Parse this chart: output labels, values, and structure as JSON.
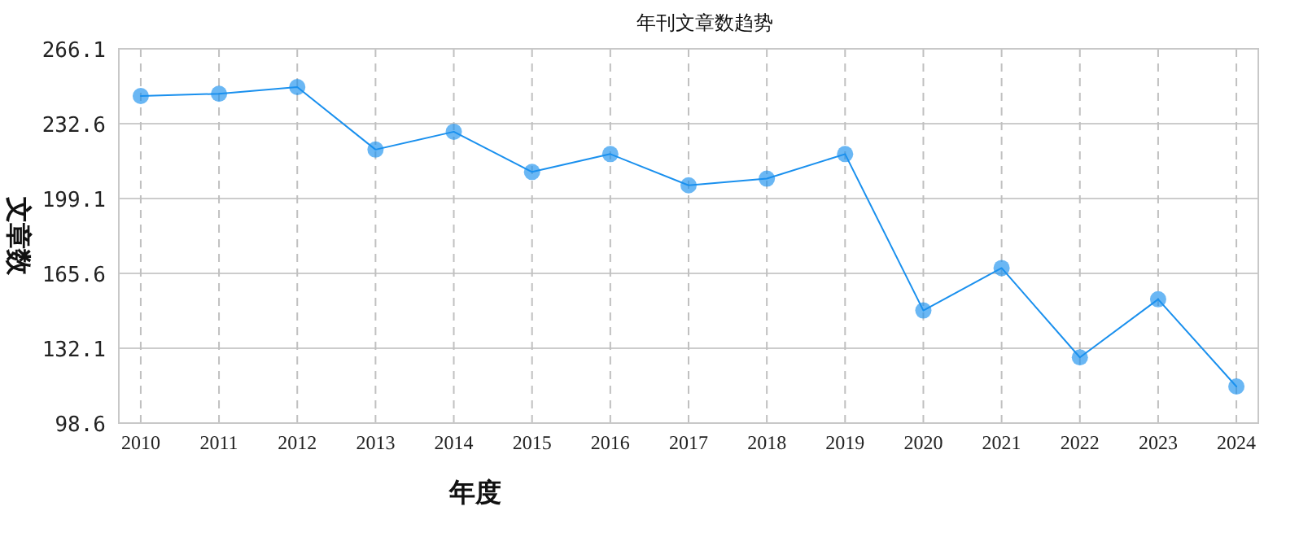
{
  "chart_data": {
    "type": "line",
    "title": "年刊文章数趋势",
    "xlabel": "年度",
    "ylabel": "文章数",
    "categories": [
      "2010",
      "2011",
      "2012",
      "2013",
      "2014",
      "2015",
      "2016",
      "2017",
      "2018",
      "2019",
      "2020",
      "2021",
      "2022",
      "2023",
      "2024"
    ],
    "series": [
      {
        "color": "#1a90ee",
        "values": [
          245,
          246,
          249,
          221,
          229,
          211,
          219,
          205,
          208,
          219,
          149,
          168,
          128,
          154,
          115
        ]
      }
    ],
    "ylim": [
      98.6,
      266.1
    ],
    "yticks": [
      98.6,
      132.1,
      165.6,
      199.1,
      232.6,
      266.1
    ],
    "grid": true,
    "marker": "circle",
    "line_style": "solid"
  }
}
